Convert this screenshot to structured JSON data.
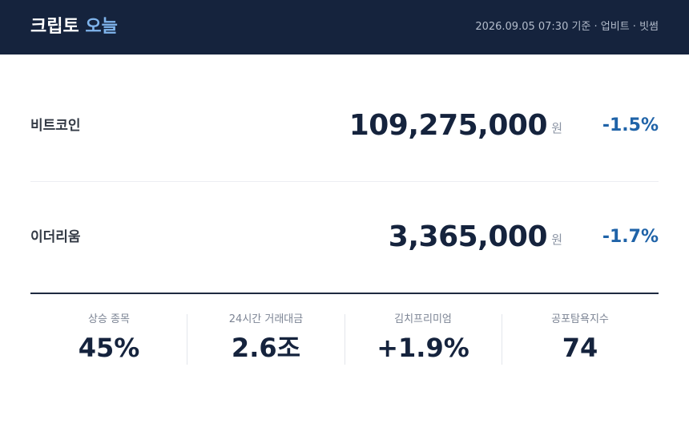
{
  "header": {
    "title": "크립토",
    "title_accent": "오늘",
    "meta": "2026.09.05 07:30 기준 · 업비트 · 빗썸"
  },
  "prices": [
    {
      "name": "비트코인",
      "price": "109,275,000",
      "unit": "원",
      "change": "-1.5%"
    },
    {
      "name": "이더리움",
      "price": "3,365,000",
      "unit": "원",
      "change": "-1.7%"
    }
  ],
  "stats": [
    {
      "label": "상승 종목",
      "value": "45%"
    },
    {
      "label": "24시간 거래대금",
      "value": "2.6조"
    },
    {
      "label": "김치프리미엄",
      "value": "+1.9%"
    },
    {
      "label": "공포탐욕지수",
      "value": "74"
    }
  ]
}
